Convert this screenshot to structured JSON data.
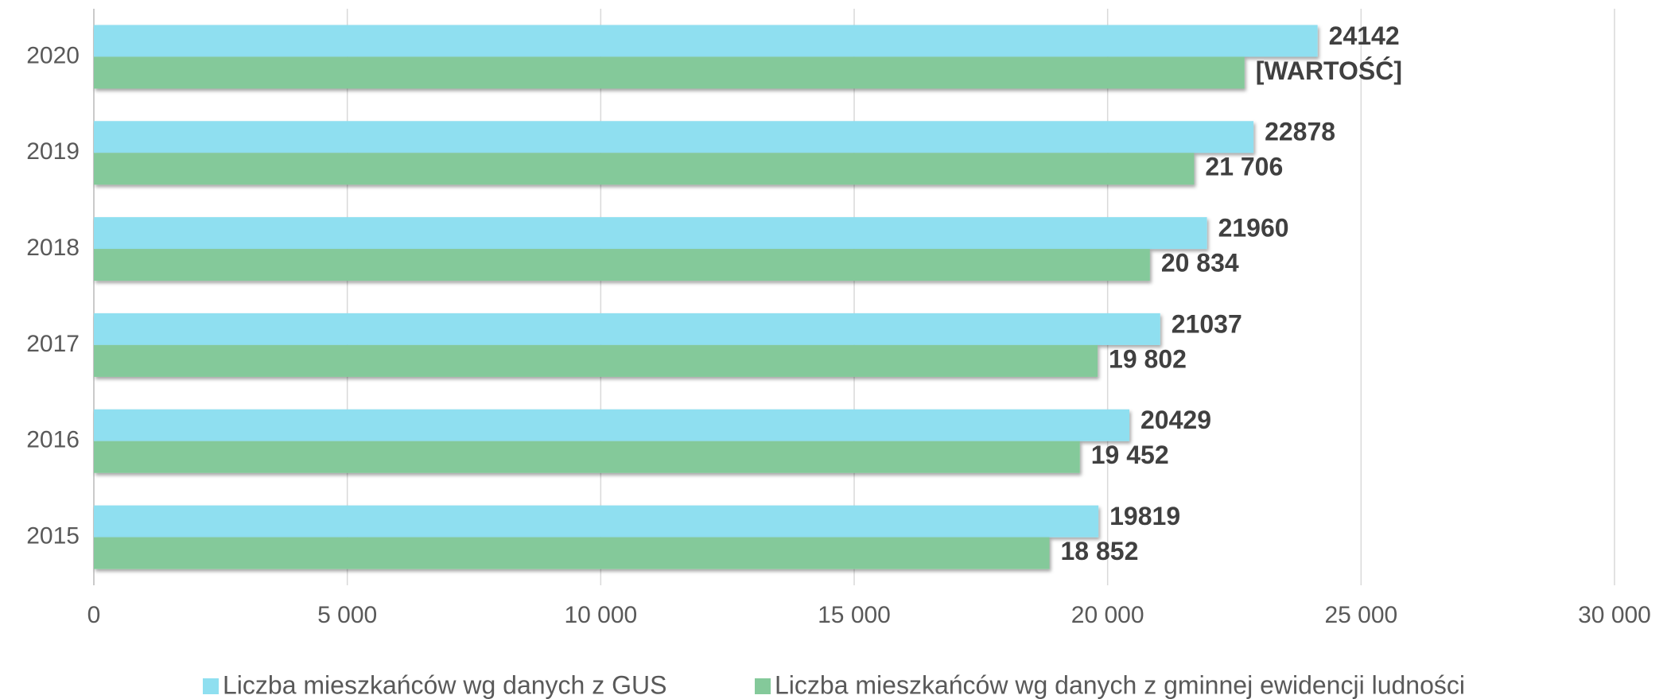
{
  "chart_data": {
    "type": "barh",
    "categories": [
      "2020",
      "2019",
      "2018",
      "2017",
      "2016",
      "2015"
    ],
    "series": [
      {
        "name": "Liczba mieszkańców wg danych z GUS",
        "color": "#8fdff0",
        "values": [
          24142,
          22878,
          21960,
          21037,
          20429,
          19819
        ]
      },
      {
        "name": "Liczba mieszkańców wg danych z gminnej ewidencji ludności",
        "color": "#84c99a",
        "values": [
          22700,
          21706,
          20834,
          19802,
          19452,
          18852
        ],
        "value_labels": [
          "[WARTOŚĆ]",
          "21 706",
          "20 834",
          "19 802",
          "19 452",
          "18 852"
        ]
      }
    ],
    "xlim": [
      0,
      30000
    ],
    "xticks": [
      0,
      {
        "value": 5000,
        "label": "5 000"
      },
      {
        "value": 10000,
        "label": "10 000"
      },
      {
        "value": 15000,
        "label": "15 000"
      },
      {
        "value": 20000,
        "label": "20 000"
      },
      {
        "value": 25000,
        "label": "25 000"
      },
      {
        "value": 30000,
        "label": "30 000"
      }
    ],
    "grid": true,
    "legend": "bottom"
  }
}
